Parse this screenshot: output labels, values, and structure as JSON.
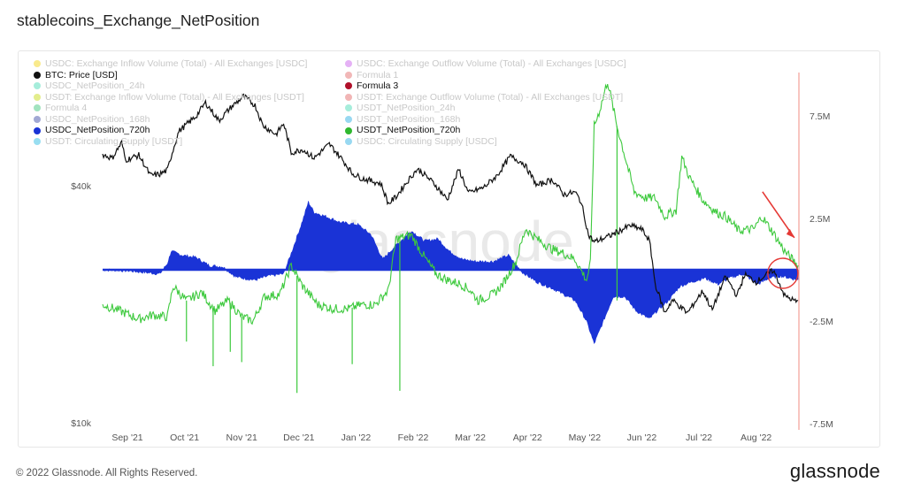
{
  "title": "stablecoins_Exchange_NetPosition",
  "footer": {
    "copyright": "© 2022 Glassnode. All Rights Reserved.",
    "logo": "glassnode"
  },
  "watermark": "glassnode",
  "colors": {
    "btc": "#111111",
    "usdt720": "#3dc93d",
    "usdc720": "#1a33d6",
    "marker": "#e53935",
    "axisline": "#f28b82"
  },
  "legend": [
    {
      "label": "USDC: Exchange Inflow Volume (Total) - All Exchanges [USDC]",
      "color": "#f2d100",
      "active": false
    },
    {
      "label": "USDC: Exchange Outflow Volume (Total) - All Exchanges [USDC]",
      "color": "#c653e8",
      "active": false
    },
    {
      "label": "BTC: Price [USD]",
      "color": "#111111",
      "active": true
    },
    {
      "label": "Formula 1",
      "color": "#e06060",
      "active": false
    },
    {
      "label": "USDC_NetPosition_24h",
      "color": "#3ad6b0",
      "active": false
    },
    {
      "label": "Formula 3",
      "color": "#b0102a",
      "active": true
    },
    {
      "label": "USDT: Exchange Inflow Volume (Total) - All Exchanges [USDT]",
      "color": "#c2d600",
      "active": false
    },
    {
      "label": "USDT: Exchange Outflow Volume (Total) - All Exchanges [USDT]",
      "color": "#e05a5a",
      "active": false
    },
    {
      "label": "Formula 4",
      "color": "#2fc070",
      "active": false
    },
    {
      "label": "USDT_NetPosition_24h",
      "color": "#3ad6b0",
      "active": false
    },
    {
      "label": "USDC_NetPosition_168h",
      "color": "#2e3fa0",
      "active": false
    },
    {
      "label": "USDT_NetPosition_168h",
      "color": "#1aa8e0",
      "active": false
    },
    {
      "label": "USDC_NetPosition_720h",
      "color": "#1a33d6",
      "active": true
    },
    {
      "label": "USDT_NetPosition_720h",
      "color": "#2fb82f",
      "active": true
    },
    {
      "label": "USDT: Circulating Supply [USDT]",
      "color": "#1ab5e0",
      "active": false
    },
    {
      "label": "USDC: Circulating Supply [USDC]",
      "color": "#1aa8e0",
      "active": false
    }
  ],
  "chart_data": {
    "type": "line",
    "x": [
      "Sep '21",
      "Oct '21",
      "Nov '21",
      "Dec '21",
      "Jan '22",
      "Feb '22",
      "Mar '22",
      "Apr '22",
      "May '22",
      "Jun '22",
      "Jul '22",
      "Aug '22"
    ],
    "x_date_range": [
      "2021-08-27",
      "2022-08-27"
    ],
    "y_left": {
      "scale": "log",
      "ticks": [
        "$10k",
        "$40k"
      ],
      "tick_values": [
        10000,
        40000
      ]
    },
    "y_right": {
      "ticks": [
        "7.5M",
        "2.5M",
        "-2.5M",
        "-7.5M"
      ],
      "tick_values": [
        7500000,
        2500000,
        -2500000,
        -7500000
      ],
      "range": [
        -7500000,
        10000000
      ]
    },
    "series": [
      {
        "name": "BTC: Price [USD]",
        "axis": "left",
        "style": "line",
        "points": [
          [
            "2021-08-27",
            48000
          ],
          [
            "2021-09-01",
            47000
          ],
          [
            "2021-09-06",
            51500
          ],
          [
            "2021-09-08",
            46500
          ],
          [
            "2021-09-15",
            47800
          ],
          [
            "2021-09-21",
            42500
          ],
          [
            "2021-09-26",
            42800
          ],
          [
            "2021-09-30",
            43800
          ],
          [
            "2021-10-06",
            55000
          ],
          [
            "2021-10-15",
            60000
          ],
          [
            "2021-10-20",
            65000
          ],
          [
            "2021-10-27",
            58500
          ],
          [
            "2021-11-02",
            63000
          ],
          [
            "2021-11-09",
            67500
          ],
          [
            "2021-11-15",
            64000
          ],
          [
            "2021-11-19",
            57000
          ],
          [
            "2021-11-26",
            54000
          ],
          [
            "2021-11-30",
            57500
          ],
          [
            "2021-12-04",
            48500
          ],
          [
            "2021-12-10",
            49500
          ],
          [
            "2021-12-16",
            47000
          ],
          [
            "2021-12-24",
            51000
          ],
          [
            "2021-12-31",
            46500
          ],
          [
            "2022-01-05",
            43000
          ],
          [
            "2022-01-10",
            41800
          ],
          [
            "2022-01-20",
            40500
          ],
          [
            "2022-01-24",
            36000
          ],
          [
            "2022-01-28",
            37500
          ],
          [
            "2022-02-08",
            44000
          ],
          [
            "2022-02-10",
            43500
          ],
          [
            "2022-02-17",
            40500
          ],
          [
            "2022-02-24",
            36800
          ],
          [
            "2022-03-02",
            44000
          ],
          [
            "2022-03-07",
            38300
          ],
          [
            "2022-03-15",
            39600
          ],
          [
            "2022-03-22",
            42400
          ],
          [
            "2022-03-29",
            47500
          ],
          [
            "2022-04-05",
            45600
          ],
          [
            "2022-04-12",
            40000
          ],
          [
            "2022-04-20",
            41500
          ],
          [
            "2022-04-26",
            38000
          ],
          [
            "2022-05-02",
            38500
          ],
          [
            "2022-05-05",
            36500
          ],
          [
            "2022-05-09",
            30000
          ],
          [
            "2022-05-12",
            28800
          ],
          [
            "2022-05-20",
            29800
          ],
          [
            "2022-05-31",
            31700
          ],
          [
            "2022-06-06",
            31000
          ],
          [
            "2022-06-10",
            29000
          ],
          [
            "2022-06-13",
            22500
          ],
          [
            "2022-06-18",
            19000
          ],
          [
            "2022-06-22",
            20500
          ],
          [
            "2022-06-30",
            19000
          ],
          [
            "2022-07-08",
            21600
          ],
          [
            "2022-07-13",
            19300
          ],
          [
            "2022-07-20",
            23500
          ],
          [
            "2022-07-26",
            21000
          ],
          [
            "2022-07-30",
            23800
          ],
          [
            "2022-08-05",
            22800
          ],
          [
            "2022-08-14",
            24400
          ],
          [
            "2022-08-20",
            21000
          ],
          [
            "2022-08-27",
            20200
          ]
        ]
      },
      {
        "name": "USDT_NetPosition_720h",
        "axis": "right",
        "style": "line",
        "points": [
          [
            "2021-08-27",
            -1700000
          ],
          [
            "2021-09-05",
            -2000000
          ],
          [
            "2021-09-15",
            -2400000
          ],
          [
            "2021-09-22",
            -2200000
          ],
          [
            "2021-09-30",
            -2300000
          ],
          [
            "2021-10-03",
            -800000
          ],
          [
            "2021-10-10",
            -1500000
          ],
          [
            "2021-10-18",
            -1100000
          ],
          [
            "2021-10-25",
            -2000000
          ],
          [
            "2021-11-01",
            -1500000
          ],
          [
            "2021-11-08",
            -2300000
          ],
          [
            "2021-11-14",
            -2500000
          ],
          [
            "2021-11-20",
            -1300000
          ],
          [
            "2021-11-28",
            -1200000
          ],
          [
            "2021-12-04",
            200000
          ],
          [
            "2021-12-10",
            -800000
          ],
          [
            "2021-12-18",
            -1700000
          ],
          [
            "2021-12-26",
            -1900000
          ],
          [
            "2022-01-03",
            -1900000
          ],
          [
            "2022-01-10",
            -1700000
          ],
          [
            "2022-01-17",
            -1700000
          ],
          [
            "2022-01-24",
            -1000000
          ],
          [
            "2022-01-28",
            1500000
          ],
          [
            "2022-02-05",
            1700000
          ],
          [
            "2022-02-12",
            600000
          ],
          [
            "2022-02-18",
            -200000
          ],
          [
            "2022-02-24",
            -500000
          ],
          [
            "2022-03-03",
            -700000
          ],
          [
            "2022-03-08",
            -1000000
          ],
          [
            "2022-03-12",
            -1500000
          ],
          [
            "2022-03-20",
            -1200000
          ],
          [
            "2022-03-25",
            -700000
          ],
          [
            "2022-04-01",
            400000
          ],
          [
            "2022-04-06",
            2000000
          ],
          [
            "2022-04-12",
            1500000
          ],
          [
            "2022-04-20",
            1000000
          ],
          [
            "2022-04-26",
            800000
          ],
          [
            "2022-05-02",
            500000
          ],
          [
            "2022-05-08",
            -500000
          ],
          [
            "2022-05-10",
            300000
          ],
          [
            "2022-05-12",
            7000000
          ],
          [
            "2022-05-15",
            7800000
          ],
          [
            "2022-05-19",
            9200000
          ],
          [
            "2022-05-24",
            7000000
          ],
          [
            "2022-06-02",
            3800000
          ],
          [
            "2022-06-08",
            3500000
          ],
          [
            "2022-06-13",
            3500000
          ],
          [
            "2022-06-18",
            2600000
          ],
          [
            "2022-06-24",
            2900000
          ],
          [
            "2022-06-27",
            5500000
          ],
          [
            "2022-07-01",
            4500000
          ],
          [
            "2022-07-08",
            3400000
          ],
          [
            "2022-07-15",
            2800000
          ],
          [
            "2022-07-20",
            2600000
          ],
          [
            "2022-07-27",
            1900000
          ],
          [
            "2022-08-04",
            2000000
          ],
          [
            "2022-08-08",
            2600000
          ],
          [
            "2022-08-14",
            1800000
          ],
          [
            "2022-08-20",
            900000
          ],
          [
            "2022-08-27",
            200000
          ]
        ],
        "spikes": [
          [
            "2021-10-10",
            -3500000
          ],
          [
            "2021-10-24",
            -4700000
          ],
          [
            "2021-11-02",
            -4000000
          ],
          [
            "2021-11-08",
            -4500000
          ],
          [
            "2021-12-07",
            -6000000
          ],
          [
            "2022-01-05",
            -4600000
          ],
          [
            "2022-01-30",
            -5900000
          ],
          [
            "2022-05-24",
            -1500000
          ]
        ]
      },
      {
        "name": "USDC_NetPosition_720h",
        "axis": "right",
        "style": "area",
        "points": [
          [
            "2021-08-27",
            0
          ],
          [
            "2021-09-10",
            -50000
          ],
          [
            "2021-09-26",
            -200000
          ],
          [
            "2021-09-30",
            300000
          ],
          [
            "2021-10-02",
            900000
          ],
          [
            "2021-10-08",
            700000
          ],
          [
            "2021-10-15",
            600000
          ],
          [
            "2021-10-22",
            200000
          ],
          [
            "2021-10-29",
            150000
          ],
          [
            "2021-11-05",
            -350000
          ],
          [
            "2021-11-15",
            -500000
          ],
          [
            "2021-11-22",
            -300000
          ],
          [
            "2021-11-30",
            -200000
          ],
          [
            "2021-12-04",
            800000
          ],
          [
            "2021-12-10",
            2400000
          ],
          [
            "2021-12-13",
            3300000
          ],
          [
            "2021-12-16",
            2800000
          ],
          [
            "2021-12-22",
            2600000
          ],
          [
            "2021-12-30",
            2300000
          ],
          [
            "2022-01-08",
            2200000
          ],
          [
            "2022-01-15",
            1700000
          ],
          [
            "2022-01-21",
            500000
          ],
          [
            "2022-01-28",
            1200000
          ],
          [
            "2022-02-05",
            1900000
          ],
          [
            "2022-02-12",
            1400000
          ],
          [
            "2022-02-19",
            1500000
          ],
          [
            "2022-02-25",
            900000
          ],
          [
            "2022-03-04",
            500000
          ],
          [
            "2022-03-11",
            400000
          ],
          [
            "2022-03-20",
            400000
          ],
          [
            "2022-03-28",
            700000
          ],
          [
            "2022-04-04",
            -100000
          ],
          [
            "2022-04-12",
            -600000
          ],
          [
            "2022-04-20",
            -900000
          ],
          [
            "2022-04-26",
            -1200000
          ],
          [
            "2022-05-02",
            -1500000
          ],
          [
            "2022-05-08",
            -2500000
          ],
          [
            "2022-05-12",
            -3600000
          ],
          [
            "2022-05-16",
            -2700000
          ],
          [
            "2022-05-22",
            -1300000
          ],
          [
            "2022-05-28",
            -1300000
          ],
          [
            "2022-06-03",
            -2000000
          ],
          [
            "2022-06-10",
            -2400000
          ],
          [
            "2022-06-14",
            -2000000
          ],
          [
            "2022-06-20",
            -1500000
          ],
          [
            "2022-06-26",
            -800000
          ],
          [
            "2022-07-02",
            -600000
          ],
          [
            "2022-07-09",
            -400000
          ],
          [
            "2022-07-16",
            -700000
          ],
          [
            "2022-07-22",
            -400000
          ],
          [
            "2022-07-29",
            -200000
          ],
          [
            "2022-08-06",
            -700000
          ],
          [
            "2022-08-12",
            -400000
          ],
          [
            "2022-08-18",
            -300000
          ],
          [
            "2022-08-27",
            -500000
          ]
        ]
      }
    ],
    "annotations": [
      {
        "type": "arrow",
        "to": [
          "2022-08-26",
          1300000
        ]
      },
      {
        "type": "circle",
        "at": [
          "2022-08-26",
          0
        ]
      }
    ]
  }
}
